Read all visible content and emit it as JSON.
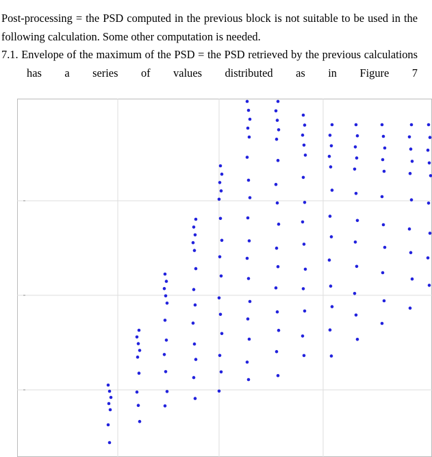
{
  "paragraphs": [
    "Post-processing = the PSD computed in the previous block is not suitable to be used in the following calculation. Some other computation is needed."
  ],
  "list_item": {
    "number": "7.1.",
    "text": "Envelope of the maximum of the PSD = the PSD retrieved by the previous calculations has a series of values distributed as in Figure 7"
  }
}
